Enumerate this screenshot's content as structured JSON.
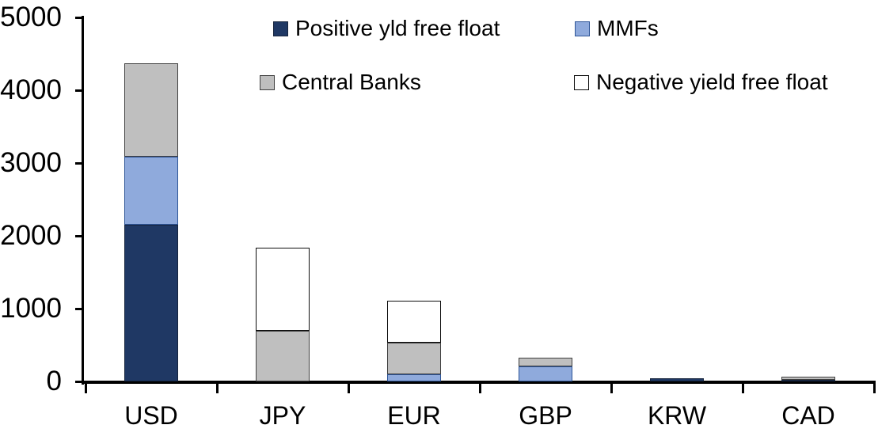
{
  "chart_data": {
    "type": "bar",
    "stacked": true,
    "title": "",
    "xlabel": "",
    "ylabel": "",
    "grid": false,
    "legend_position": "top",
    "ylim": [
      0,
      5000
    ],
    "y_ticks": [
      "0",
      "1000",
      "2000",
      "3000",
      "4000",
      "5000"
    ],
    "y_tick_values": [
      0,
      1000,
      2000,
      3000,
      4000,
      5000
    ],
    "categories": [
      "USD",
      "JPY",
      "EUR",
      "GBP",
      "KRW",
      "CAD"
    ],
    "series": [
      {
        "name": "Positive yld free float",
        "color": "#1f3864",
        "border": "#16243d",
        "values": [
          2150,
          0,
          0,
          0,
          45,
          25
        ]
      },
      {
        "name": "MMFs",
        "color": "#8faadc",
        "border": "#2e5597",
        "values": [
          935,
          0,
          95,
          210,
          0,
          0
        ]
      },
      {
        "name": "Central Banks",
        "color": "#bfbfbf",
        "border": "#404040",
        "values": [
          1285,
          700,
          440,
          115,
          0,
          35
        ]
      },
      {
        "name": "Negative yield free float",
        "color": "#ffffff",
        "border": "#0d0d0d",
        "values": [
          0,
          1140,
          570,
          0,
          0,
          0
        ]
      }
    ],
    "totals_by_category": [
      4370,
      1840,
      1105,
      325,
      45,
      60
    ],
    "axis_color": "#000000"
  }
}
